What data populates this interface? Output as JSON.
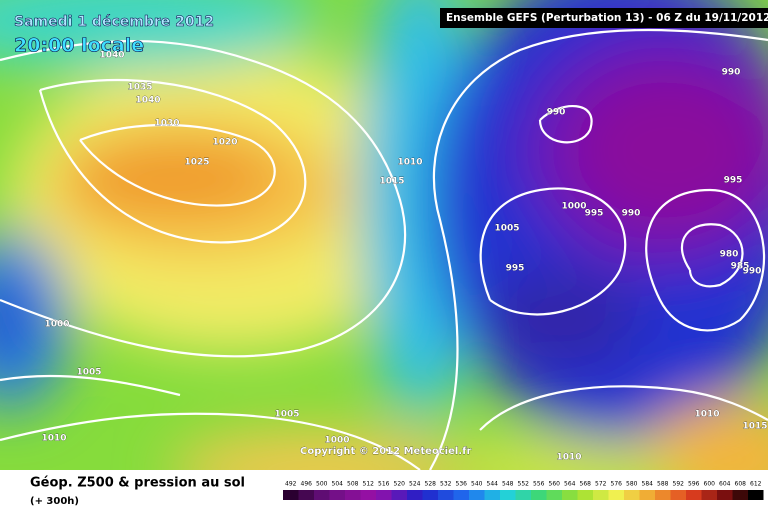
{
  "header": {
    "date": "Samedi 1 décembre 2012",
    "time": "20:00 locale",
    "model": "Ensemble GEFS (Perturbation 13)  -  06 Z du 19/11/2012"
  },
  "isobar_labels": [
    1040,
    1035,
    1040,
    1030,
    1020,
    1025,
    1010,
    1015,
    990,
    990,
    995,
    1000,
    995,
    990,
    1005,
    995,
    980,
    985,
    990,
    1000,
    1005,
    1005,
    1010,
    1000,
    1010,
    1015,
    1010
  ],
  "copyright": "Copyright © 2012 Meteociel.fr",
  "footer": {
    "title": "Géop. Z500 & pression au sol",
    "lead": "(+ 300h)"
  },
  "colorbar": [
    492,
    496,
    500,
    504,
    508,
    512,
    516,
    520,
    524,
    528,
    532,
    536,
    540,
    544,
    548,
    552,
    556,
    560,
    564,
    568,
    572,
    576,
    580,
    584,
    588,
    592,
    596,
    600,
    604,
    608,
    612
  ]
}
